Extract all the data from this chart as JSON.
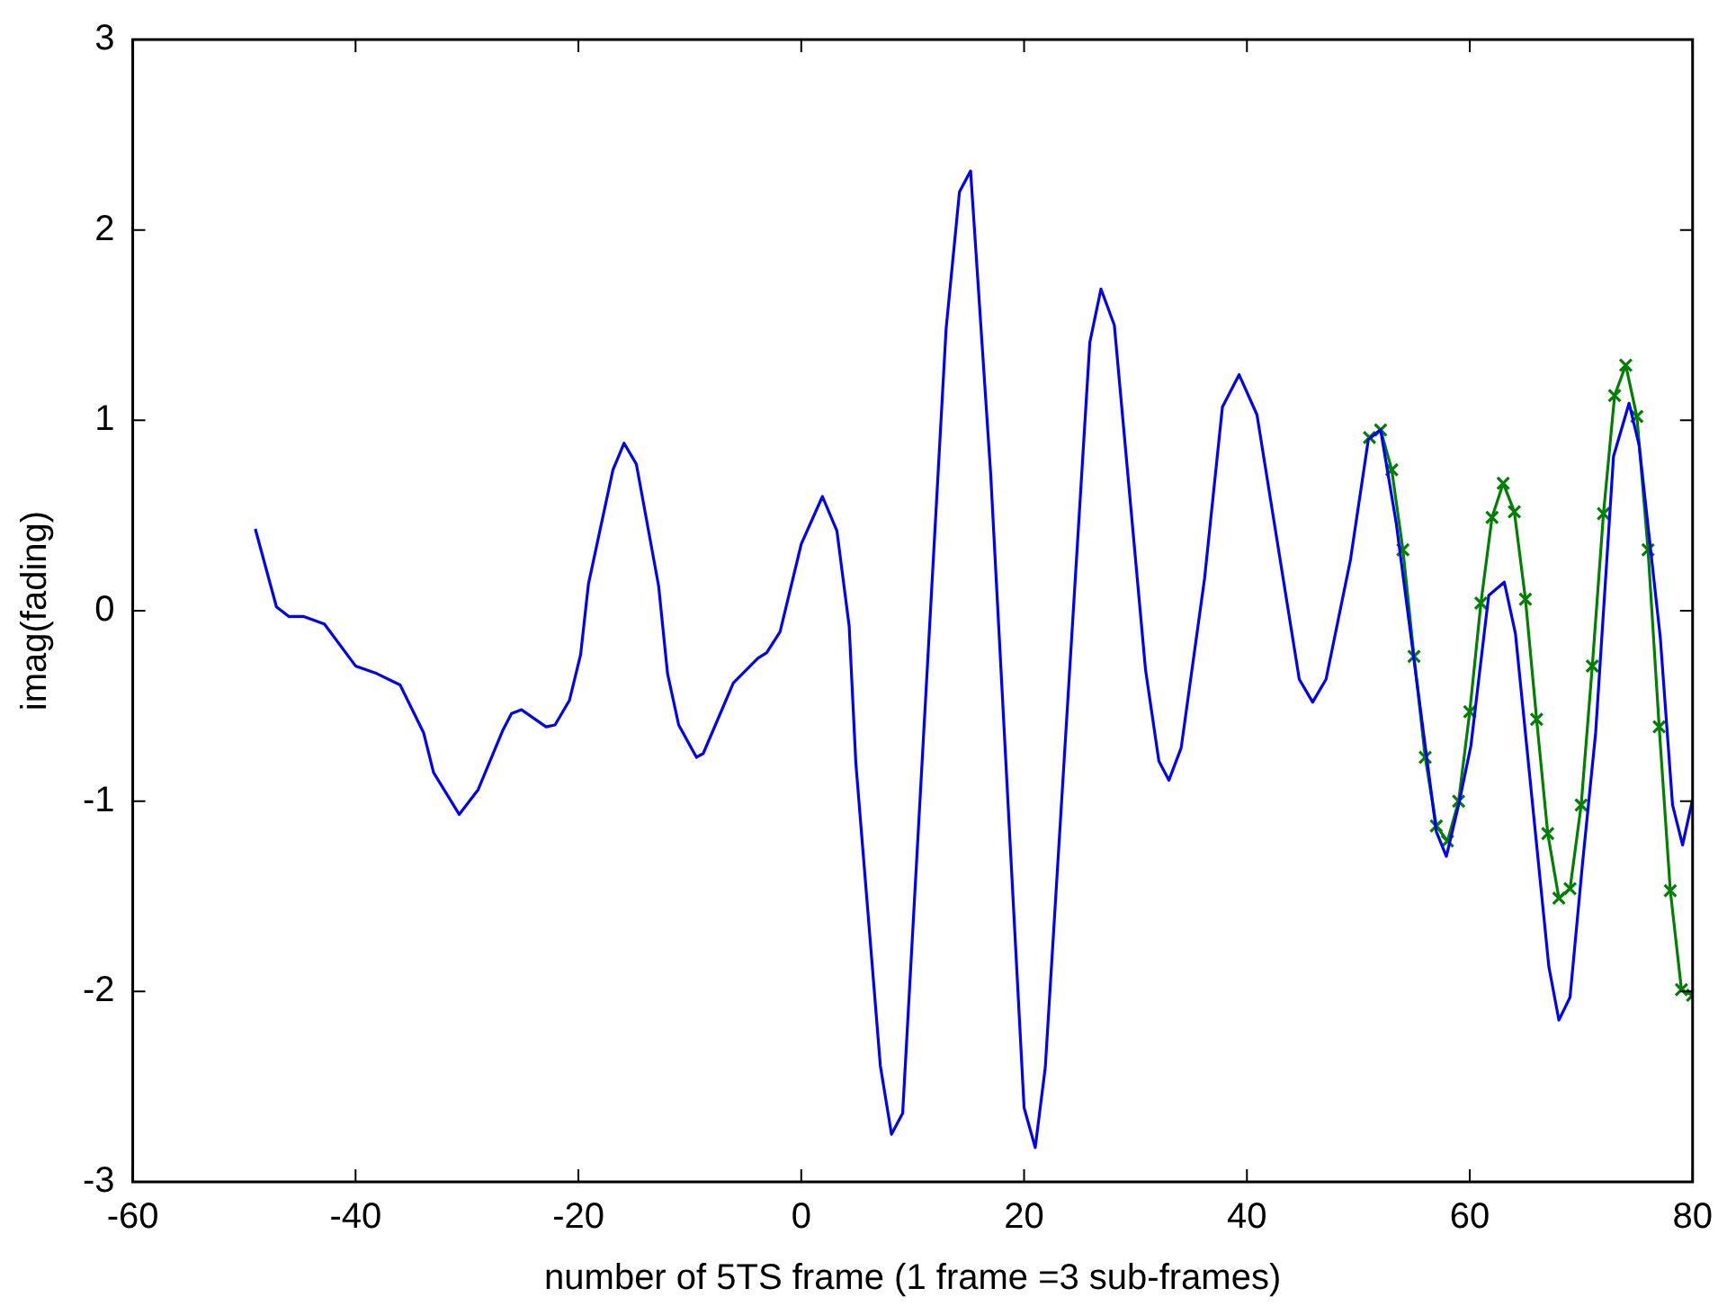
{
  "chart_data": {
    "type": "line",
    "xlabel": "number of 5TS frame (1 frame =3 sub-frames)",
    "ylabel": "imag(fading)",
    "xlim": [
      -60,
      80
    ],
    "xticks": [
      -60,
      -40,
      -20,
      0,
      20,
      40,
      60,
      80
    ],
    "ylim": [
      -3,
      3
    ],
    "yticks": [
      -3,
      -2,
      -1,
      0,
      1,
      2,
      3
    ],
    "grid": false,
    "legend": false,
    "series": [
      {
        "color": "#0000ff",
        "marker": "none",
        "x": [
          -49,
          -47.1,
          -46,
          -44.7,
          -42.8,
          -40,
          -38.1,
          -36,
          -33.9,
          -33,
          -30.7,
          -29,
          -26.8,
          -26,
          -25.1,
          -22.9,
          -22.1,
          -20.8,
          -19.8,
          -19.1,
          -16.9,
          -15.9,
          -14.8,
          -12.8,
          -12,
          -11,
          -9.4,
          -8.8,
          -6.1,
          -3.9,
          -3.1,
          -1.9,
          0,
          1.9,
          3.2,
          4.3,
          4.9,
          7.1,
          8.1,
          9.1,
          13,
          14.2,
          15.2,
          17,
          20,
          21,
          21.9,
          25.9,
          26.9,
          28.1,
          30.9,
          32.1,
          33,
          34.1,
          36.2,
          37.8,
          39.3,
          40.9,
          44.7,
          45.9,
          47.1,
          49.3,
          50.9,
          52,
          53.4,
          57,
          57.9,
          59,
          60.1,
          61.7,
          63.1,
          64.1,
          67.1,
          68,
          69,
          70.1,
          71.3,
          72.9,
          74.3,
          75.2,
          77.1,
          78.2,
          79.1,
          80
        ],
        "values": [
          0.43,
          0.02,
          -0.03,
          -0.03,
          -0.07,
          -0.29,
          -0.33,
          -0.39,
          -0.64,
          -0.85,
          -1.07,
          -0.94,
          -0.63,
          -0.54,
          -0.52,
          -0.61,
          -0.6,
          -0.47,
          -0.23,
          0.14,
          0.74,
          0.88,
          0.77,
          0.13,
          -0.33,
          -0.6,
          -0.77,
          -0.75,
          -0.38,
          -0.25,
          -0.22,
          -0.11,
          0.35,
          0.6,
          0.42,
          -0.08,
          -0.8,
          -2.39,
          -2.75,
          -2.64,
          1.48,
          2.2,
          2.31,
          0.72,
          -2.61,
          -2.82,
          -2.4,
          1.41,
          1.69,
          1.5,
          -0.31,
          -0.79,
          -0.89,
          -0.72,
          0.17,
          1.07,
          1.24,
          1.03,
          -0.36,
          -0.48,
          -0.36,
          0.27,
          0.9,
          0.95,
          0.46,
          -1.16,
          -1.29,
          -1.02,
          -0.71,
          0.08,
          0.15,
          -0.12,
          -1.87,
          -2.15,
          -2.03,
          -1.34,
          -0.64,
          0.81,
          1.09,
          0.87,
          -0.14,
          -1.02,
          -1.23,
          -0.99
        ]
      },
      {
        "color": "#008000",
        "marker": "cross",
        "x": [
          51,
          52,
          53,
          54,
          55,
          56,
          57,
          58,
          59,
          60,
          61,
          62,
          63,
          64,
          65,
          66,
          67,
          68,
          69,
          70,
          71,
          72,
          73,
          74,
          75,
          76,
          77,
          78,
          79,
          80
        ],
        "values": [
          0.91,
          0.95,
          0.74,
          0.32,
          -0.24,
          -0.77,
          -1.13,
          -1.21,
          -1.0,
          -0.53,
          0.04,
          0.49,
          0.67,
          0.52,
          0.06,
          -0.57,
          -1.17,
          -1.51,
          -1.46,
          -1.02,
          -0.29,
          0.51,
          1.13,
          1.29,
          1.02,
          0.32,
          -0.61,
          -1.47,
          -1.99,
          -2.02
        ]
      }
    ]
  }
}
